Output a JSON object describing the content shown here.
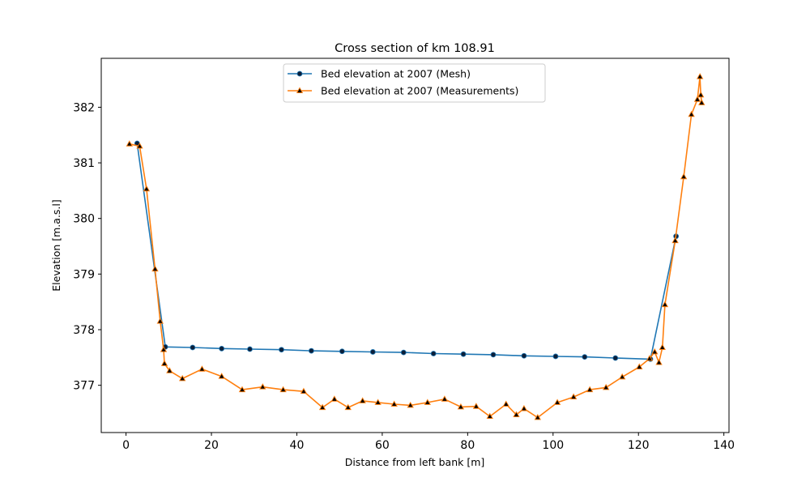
{
  "chart_data": {
    "type": "line",
    "title": "Cross section of km 108.91",
    "xlabel": "Distance from left bank [m]",
    "ylabel": "Elevation [m.a.s.l]",
    "xlim": [
      -5.8,
      141.2
    ],
    "ylim": [
      376.15,
      382.88
    ],
    "x_ticks": [
      0,
      20,
      40,
      60,
      80,
      100,
      120,
      140
    ],
    "y_ticks": [
      377,
      378,
      379,
      380,
      381,
      382
    ],
    "grid": false,
    "legend_position": "upper-center",
    "series": [
      {
        "name": "Bed elevation at 2007 (Mesh)",
        "color": "#1f77b4",
        "marker": "circle",
        "x": [
          2.6,
          9.2,
          15.6,
          22.4,
          29.0,
          36.4,
          43.4,
          50.6,
          57.8,
          65.0,
          72.0,
          79.0,
          86.0,
          93.2,
          100.6,
          107.4,
          114.6,
          122.8,
          128.8
        ],
        "y": [
          381.35,
          377.69,
          377.68,
          377.66,
          377.65,
          377.64,
          377.62,
          377.61,
          377.6,
          377.59,
          377.57,
          377.56,
          377.55,
          377.53,
          377.52,
          377.51,
          377.49,
          377.47,
          379.68
        ]
      },
      {
        "name": "Bed elevation at 2007 (Measurements)",
        "color": "#ff7f0e",
        "marker": "triangle",
        "x": [
          0.8,
          3.2,
          4.8,
          6.8,
          8.0,
          8.8,
          9.0,
          10.2,
          13.2,
          17.8,
          22.4,
          27.2,
          32.0,
          36.8,
          41.6,
          46.0,
          48.8,
          52.0,
          55.4,
          59.0,
          62.8,
          66.6,
          70.6,
          74.6,
          78.4,
          82.0,
          85.2,
          89.0,
          91.4,
          93.2,
          96.4,
          101.0,
          104.8,
          108.6,
          112.4,
          116.2,
          120.2,
          122.6,
          123.8,
          124.8,
          125.6,
          126.2,
          128.6,
          130.6,
          132.4,
          133.8,
          134.4,
          134.6,
          134.8
        ],
        "y": [
          381.34,
          381.3,
          380.53,
          379.09,
          378.15,
          377.64,
          377.39,
          377.26,
          377.12,
          377.29,
          377.16,
          376.92,
          376.97,
          376.92,
          376.89,
          376.6,
          376.75,
          376.6,
          376.72,
          376.69,
          376.66,
          376.64,
          376.69,
          376.75,
          376.61,
          376.62,
          376.44,
          376.66,
          376.47,
          376.58,
          376.42,
          376.69,
          376.79,
          376.92,
          376.96,
          377.15,
          377.33,
          377.48,
          377.6,
          377.41,
          377.68,
          378.45,
          379.6,
          380.75,
          381.87,
          382.14,
          382.55,
          382.22,
          382.08
        ]
      }
    ]
  }
}
